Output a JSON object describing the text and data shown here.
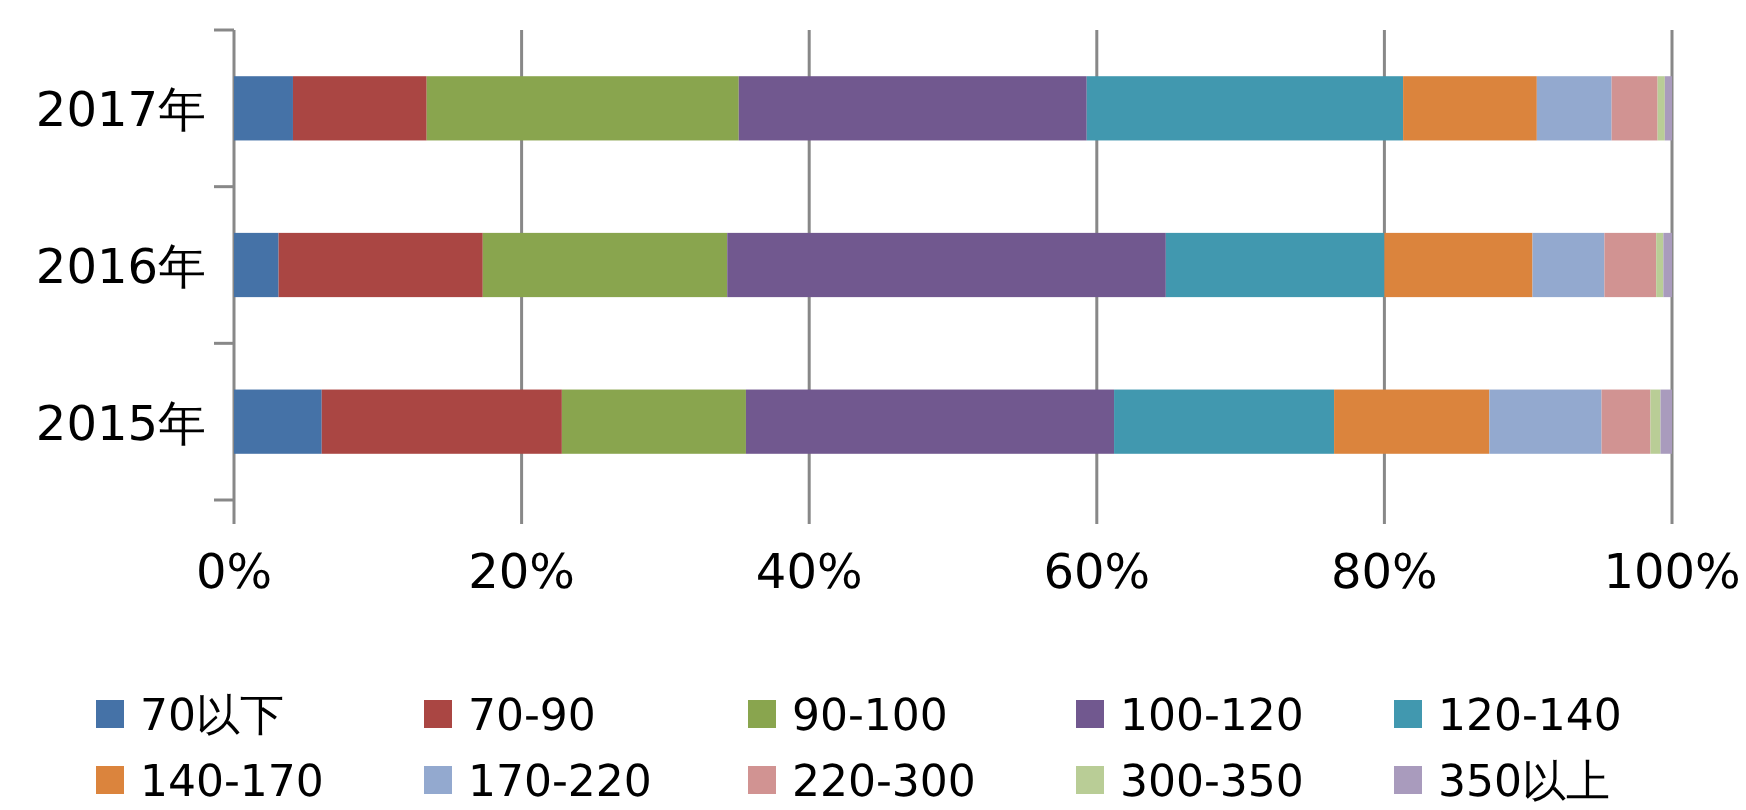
{
  "chart_data": {
    "type": "bar",
    "orientation": "horizontal",
    "stacked": true,
    "categories": [
      "2017年",
      "2016年",
      "2015年"
    ],
    "series": [
      {
        "name": "70以下",
        "color": "#4572a7",
        "values": [
          4.1,
          3.1,
          6.1
        ]
      },
      {
        "name": "70-90",
        "color": "#aa4643",
        "values": [
          9.3,
          14.2,
          16.7
        ]
      },
      {
        "name": "90-100",
        "color": "#89a54e",
        "values": [
          21.7,
          17.0,
          12.8
        ]
      },
      {
        "name": "100-120",
        "color": "#71588f",
        "values": [
          24.2,
          30.5,
          25.6
        ]
      },
      {
        "name": "120-140",
        "color": "#4198af",
        "values": [
          22.0,
          15.2,
          15.3
        ]
      },
      {
        "name": "140-170",
        "color": "#db843d",
        "values": [
          9.3,
          10.3,
          10.8
        ]
      },
      {
        "name": "170-220",
        "color": "#93a9cf",
        "values": [
          5.2,
          5.0,
          7.8
        ]
      },
      {
        "name": "220-300",
        "color": "#d19392",
        "values": [
          3.2,
          3.6,
          3.4
        ]
      },
      {
        "name": "300-350",
        "color": "#b9cd96",
        "values": [
          0.5,
          0.5,
          0.7
        ]
      },
      {
        "name": "350以上",
        "color": "#a99bbd",
        "values": [
          0.5,
          0.6,
          0.8
        ]
      }
    ],
    "xlim": [
      0,
      100
    ],
    "xticks": [
      {
        "value": 0,
        "label": "0%"
      },
      {
        "value": 20,
        "label": "20%"
      },
      {
        "value": 40,
        "label": "40%"
      },
      {
        "value": 60,
        "label": "60%"
      },
      {
        "value": 80,
        "label": "80%"
      },
      {
        "value": 100,
        "label": "100%"
      }
    ],
    "grid": "x",
    "legend": "bottom"
  }
}
